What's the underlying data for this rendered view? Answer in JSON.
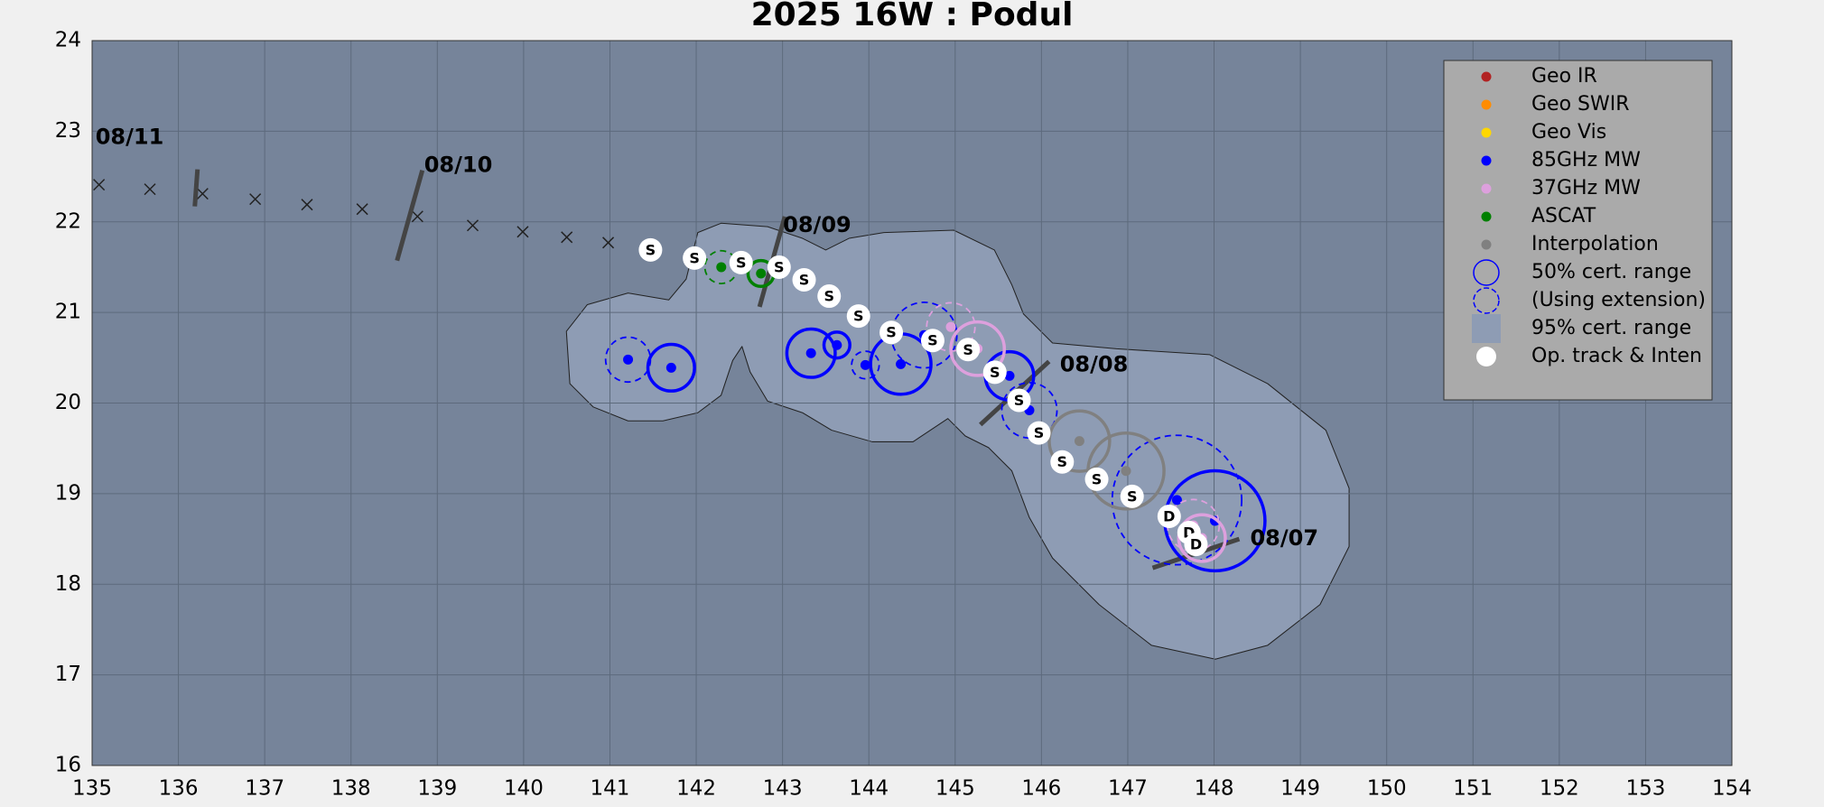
{
  "chart_data": {
    "type": "track",
    "title": "2025  16W :  Podul",
    "xlim": [
      135,
      154
    ],
    "xticks": [
      135,
      136,
      137,
      138,
      139,
      140,
      141,
      142,
      143,
      144,
      145,
      146,
      147,
      148,
      149,
      150,
      151,
      152,
      153,
      154
    ],
    "ylim": [
      16,
      24
    ],
    "yticks": [
      16,
      17,
      18,
      19,
      20,
      21,
      22,
      23,
      24
    ],
    "grid": true,
    "op_track": {
      "lon": [
        141.47,
        141.98,
        142.52,
        142.96,
        143.25,
        143.54,
        143.88,
        144.26,
        144.74,
        145.15,
        145.46,
        145.74,
        145.97,
        146.24,
        146.64,
        147.05,
        147.48,
        147.71,
        147.79
      ],
      "lat": [
        21.69,
        21.6,
        21.55,
        21.5,
        21.36,
        21.18,
        20.96,
        20.78,
        20.69,
        20.59,
        20.34,
        20.03,
        19.67,
        19.35,
        19.16,
        18.97,
        18.75,
        18.57,
        18.44
      ],
      "labels": [
        "S",
        "S",
        "S",
        "S",
        "S",
        "S",
        "S",
        "S",
        "S",
        "S",
        "S",
        "S",
        "S",
        "S",
        "S",
        "S",
        "D",
        "D",
        "D"
      ]
    },
    "past_track": {
      "lon": [
        135.08,
        135.67,
        136.28,
        136.89,
        137.49,
        138.13,
        138.77,
        139.41,
        139.99,
        140.5,
        140.98
      ],
      "lat": [
        22.41,
        22.36,
        22.31,
        22.25,
        22.19,
        22.14,
        22.06,
        21.96,
        21.89,
        21.83,
        21.77
      ]
    },
    "dates": {
      "labels": [
        "08/11",
        "08/10",
        "08/09",
        "08/08",
        "08/07"
      ],
      "lon": [
        136.19,
        138.68,
        142.88,
        145.69,
        147.79
      ],
      "lat": [
        22.33,
        22.07,
        21.56,
        20.16,
        18.38
      ]
    },
    "fixes": [
      {
        "name": "85GHz MW",
        "color": "#0000ff",
        "lon": [
          141.21,
          141.71,
          143.33,
          143.63,
          143.96,
          144.37,
          144.64,
          145.63,
          145.86,
          147.57,
          148.01
        ],
        "lat": [
          20.48,
          20.39,
          20.55,
          20.64,
          20.42,
          20.43,
          20.75,
          20.3,
          19.92,
          18.93,
          18.7
        ],
        "radius": [
          0.26,
          0.27,
          0.28,
          0.15,
          0.16,
          0.35,
          0.38,
          0.28,
          0.32,
          0.75,
          0.58
        ],
        "dashed": [
          true,
          false,
          false,
          false,
          true,
          false,
          true,
          false,
          true,
          true,
          false
        ]
      },
      {
        "name": "37GHz MW",
        "color": "#dda0dd",
        "lon": [
          144.95,
          145.26,
          147.76,
          147.86
        ],
        "lat": [
          20.84,
          20.6,
          18.65,
          18.51
        ],
        "radius": [
          0.28,
          0.31,
          0.3,
          0.27
        ],
        "dashed": [
          true,
          false,
          true,
          false
        ]
      },
      {
        "name": "ASCAT",
        "color": "#008000",
        "lon": [
          142.29,
          142.75
        ],
        "lat": [
          21.5,
          21.43
        ],
        "radius": [
          0.19,
          0.15
        ],
        "dashed": [
          true,
          false
        ]
      },
      {
        "name": "Interpolation",
        "color": "#808080",
        "lon": [
          146.44,
          146.98
        ],
        "lat": [
          19.58,
          19.25
        ],
        "radius": [
          0.35,
          0.44
        ],
        "dashed": [
          false,
          false
        ]
      }
    ],
    "legend": [
      {
        "name": "Geo IR",
        "color": "#b22222",
        "kind": "dot"
      },
      {
        "name": "Geo SWIR",
        "color": "#ff8c00",
        "kind": "dot"
      },
      {
        "name": "Geo Vis",
        "color": "#ffd700",
        "kind": "dot"
      },
      {
        "name": "85GHz MW",
        "color": "#0000ff",
        "kind": "dot"
      },
      {
        "name": "37GHz MW",
        "color": "#dda0dd",
        "kind": "dot"
      },
      {
        "name": "ASCAT",
        "color": "#008000",
        "kind": "dot"
      },
      {
        "name": "Interpolation",
        "color": "#808080",
        "kind": "dot"
      },
      {
        "name": "50% cert. range",
        "color": "#0000ff",
        "kind": "circle"
      },
      {
        "name": "(Using extension)",
        "color": "#0000ff",
        "kind": "dashed-circle"
      },
      {
        "name": "95% cert. range",
        "color": "#8e9cb4",
        "kind": "square"
      },
      {
        "name": "Op. track & Inten",
        "color": "#ffffff",
        "kind": "big-dot"
      }
    ]
  }
}
